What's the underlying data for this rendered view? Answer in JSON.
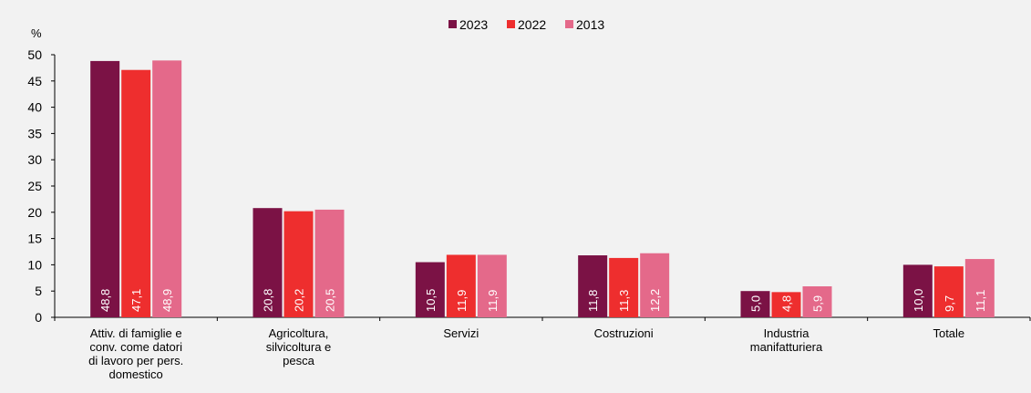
{
  "chart_data": {
    "type": "bar",
    "unit_label": "%",
    "ylim": [
      0,
      50
    ],
    "yticks": [
      0,
      5,
      10,
      15,
      20,
      25,
      30,
      35,
      40,
      45,
      50
    ],
    "grid": false,
    "legend_position": "top-center",
    "categories": [
      [
        "Attiv. di famiglie e",
        "conv. come datori",
        "di lavoro per pers.",
        "domestico"
      ],
      [
        "Agricoltura,",
        "silvicoltura e",
        "pesca"
      ],
      [
        "Servizi"
      ],
      [
        "Costruzioni"
      ],
      [
        "Industria",
        "manifatturiera"
      ],
      [
        "Totale"
      ]
    ],
    "series": [
      {
        "name": "2023",
        "color": "#7b1245",
        "values": [
          48.8,
          20.8,
          10.5,
          11.8,
          5.0,
          10.0
        ],
        "labels": [
          "48,8",
          "20,8",
          "10,5",
          "11,8",
          "5,0",
          "10,0"
        ]
      },
      {
        "name": "2022",
        "color": "#ee2e2e",
        "values": [
          47.1,
          20.2,
          11.9,
          11.3,
          4.8,
          9.7
        ],
        "labels": [
          "47,1",
          "20,2",
          "11,9",
          "11,3",
          "4,8",
          "9,7"
        ]
      },
      {
        "name": "2013",
        "color": "#e4698a",
        "values": [
          48.9,
          20.5,
          11.9,
          12.2,
          5.9,
          11.1
        ],
        "labels": [
          "48,9",
          "20,5",
          "11,9",
          "12,2",
          "5,9",
          "11,1"
        ]
      }
    ]
  }
}
